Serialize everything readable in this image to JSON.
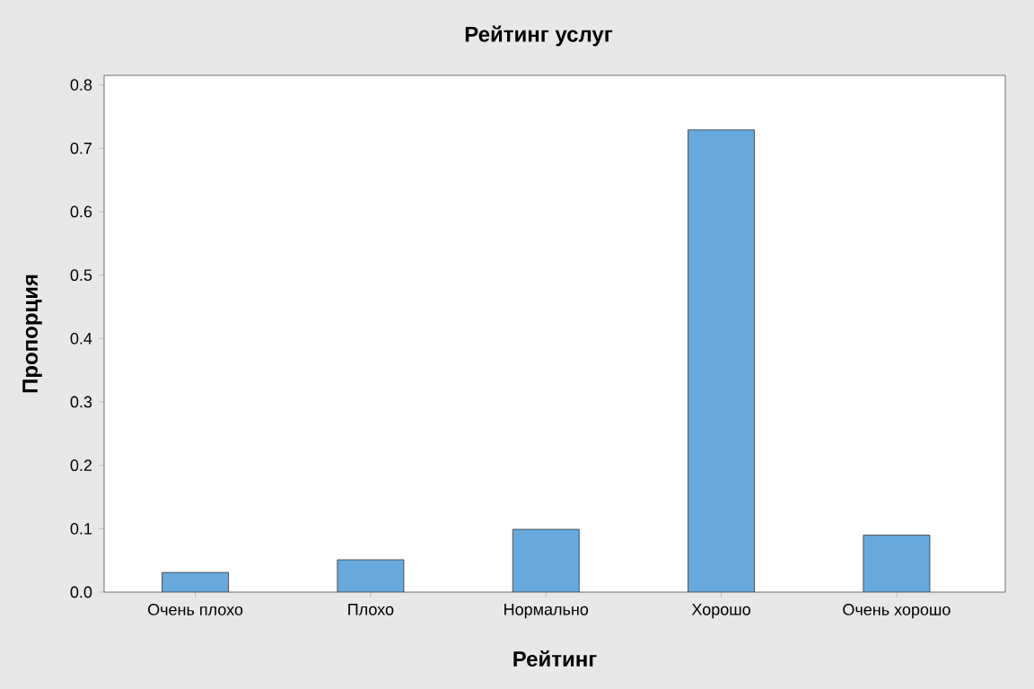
{
  "chart_data": {
    "type": "bar",
    "title": "Рейтинг услуг",
    "xlabel": "Рейтинг",
    "ylabel": "Пропорция",
    "categories": [
      "Очень плохо",
      "Плохо",
      "Нормально",
      "Хорошо",
      "Очень хорошо"
    ],
    "values": [
      0.031,
      0.051,
      0.099,
      0.729,
      0.09
    ],
    "color": "#67a9dc",
    "ylim": [
      0,
      0.815
    ],
    "yticks": [
      {
        "value": 0,
        "label": "0.0"
      },
      0.1,
      0.2,
      0.3,
      0.4,
      0.5,
      0.6,
      0.7,
      0.8
    ],
    "grid": false
  }
}
